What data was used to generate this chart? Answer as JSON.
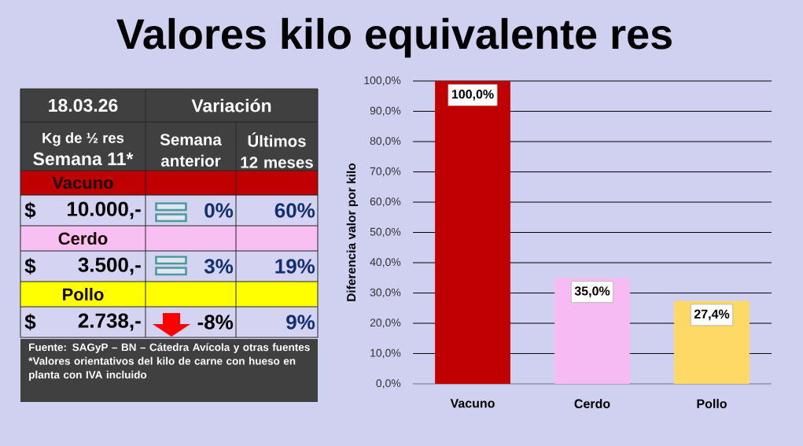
{
  "chart_data": [
    {
      "type": "other",
      "title": "Valores kilo equivalente res",
      "annotations": [
        "18.03.26",
        "Variación",
        "Kg de ½ res",
        "Semana 11*",
        "Semana anterior",
        "Últimos 12 meses",
        "Vacuno",
        "$",
        "10.000,-",
        "0%",
        "60%",
        "Cerdo",
        "$",
        "3.500,-",
        "3%",
        "19%",
        "Pollo",
        "$",
        "2.738,-",
        "-8%",
        "9%",
        "Fuente: SAGyP – BN – Cátedra Avícola y otras fuentes",
        "*Valores orientativos del kilo de carne con hueso en planta con IVA incluido"
      ]
    },
    {
      "type": "bar",
      "ylabel": "Diferencia valor por kilo",
      "categories": [
        "Vacuno",
        "Cerdo",
        "Pollo"
      ],
      "values": [
        100,
        35,
        27.4
      ],
      "colors": [
        "#c00000",
        "#f7bbf3",
        "#ffd966"
      ],
      "value_labels": [
        "100,0%",
        "35,0%",
        "27,4%"
      ],
      "ylim": [
        0,
        100
      ],
      "yticks": [
        {
          "value": 0,
          "label": "0,0%"
        },
        {
          "value": 10,
          "label": "10,0%"
        },
        {
          "value": 20,
          "label": "20,0%"
        },
        {
          "value": 30,
          "label": "30,0%"
        },
        {
          "value": 40,
          "label": "40,0%"
        },
        {
          "value": 50,
          "label": "50,0%"
        },
        {
          "value": 60,
          "label": "60,0%"
        },
        {
          "value": 70,
          "label": "70,0%"
        },
        {
          "value": 80,
          "label": "80,0%"
        },
        {
          "value": 90,
          "label": "90,0%"
        },
        {
          "value": 100,
          "label": "100,0%"
        }
      ],
      "grid": "y"
    }
  ]
}
